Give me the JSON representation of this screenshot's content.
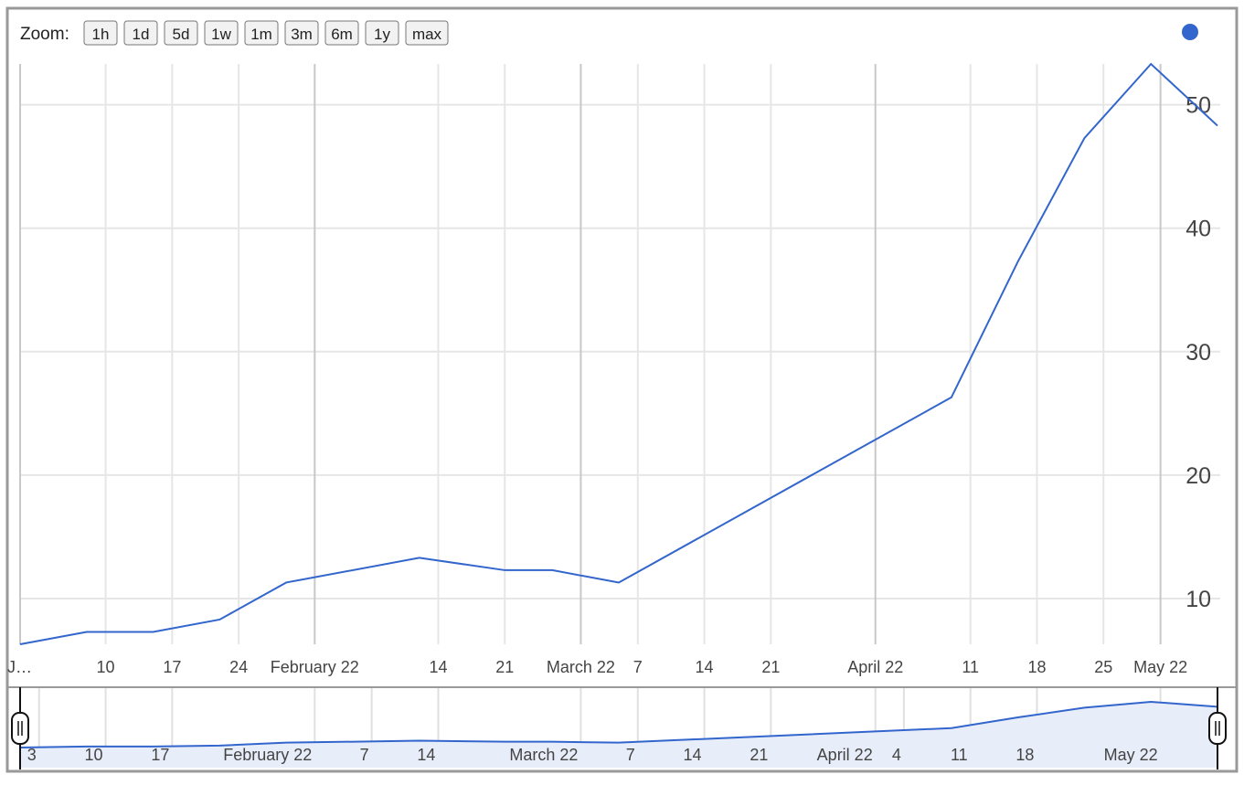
{
  "zoom": {
    "label": "Zoom:",
    "buttons": [
      "1h",
      "1d",
      "5d",
      "1w",
      "1m",
      "3m",
      "6m",
      "1y",
      "max"
    ]
  },
  "chart_data": {
    "type": "line",
    "x": [
      "2022-01-01",
      "2022-01-08",
      "2022-01-15",
      "2022-01-22",
      "2022-01-29",
      "2022-02-12",
      "2022-02-21",
      "2022-02-26",
      "2022-03-05",
      "2022-04-09",
      "2022-04-16",
      "2022-04-23",
      "2022-04-30",
      "2022-05-07"
    ],
    "series": [
      {
        "color": "#3366cc",
        "values": [
          6.3,
          7.3,
          7.3,
          8.3,
          11.3,
          13.3,
          12.3,
          12.3,
          11.3,
          26.3,
          37.3,
          47.3,
          53.3,
          48.3
        ]
      }
    ],
    "xlim": [
      "2022-01-01",
      "2022-05-07"
    ],
    "ylim": [
      6.3,
      53.3
    ],
    "yticks": [
      10,
      20,
      30,
      40,
      50
    ],
    "xticks": [
      {
        "value": "2022-01-01",
        "label": "J…"
      },
      {
        "value": "2022-01-10",
        "label": "10"
      },
      {
        "value": "2022-01-17",
        "label": "17"
      },
      {
        "value": "2022-01-24",
        "label": "24"
      },
      {
        "value": "2022-02-01",
        "label": "February 22"
      },
      {
        "value": "2022-02-14",
        "label": "14"
      },
      {
        "value": "2022-02-21",
        "label": "21"
      },
      {
        "value": "2022-03-01",
        "label": "March 22"
      },
      {
        "value": "2022-03-07",
        "label": "7"
      },
      {
        "value": "2022-03-14",
        "label": "14"
      },
      {
        "value": "2022-03-21",
        "label": "21"
      },
      {
        "value": "2022-04-01",
        "label": "April 22"
      },
      {
        "value": "2022-04-11",
        "label": "11"
      },
      {
        "value": "2022-04-18",
        "label": "18"
      },
      {
        "value": "2022-04-25",
        "label": "25"
      },
      {
        "value": "2022-05-01",
        "label": "May 22"
      }
    ],
    "navigator_ticks": [
      {
        "value": "2022-01-03",
        "label": "3"
      },
      {
        "value": "2022-01-10",
        "label": "10"
      },
      {
        "value": "2022-01-17",
        "label": "17"
      },
      {
        "value": "2022-02-01",
        "label": "February 22"
      },
      {
        "value": "2022-02-07",
        "label": "7"
      },
      {
        "value": "2022-02-14",
        "label": "14"
      },
      {
        "value": "2022-03-01",
        "label": "March 22"
      },
      {
        "value": "2022-03-07",
        "label": "7"
      },
      {
        "value": "2022-03-14",
        "label": "14"
      },
      {
        "value": "2022-03-21",
        "label": "21"
      },
      {
        "value": "2022-04-01",
        "label": "April 22"
      },
      {
        "value": "2022-04-04",
        "label": "4"
      },
      {
        "value": "2022-04-11",
        "label": "11"
      },
      {
        "value": "2022-04-18",
        "label": "18"
      },
      {
        "value": "2022-05-01",
        "label": "May 22"
      }
    ]
  }
}
